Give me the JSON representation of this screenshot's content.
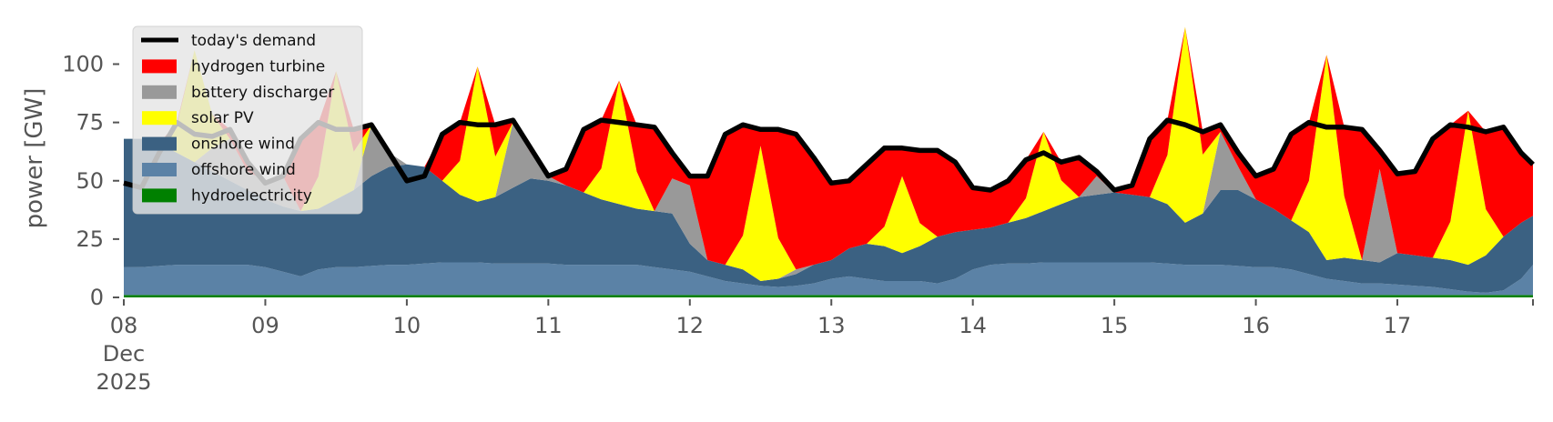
{
  "chart_data": {
    "type": "area",
    "stacked": true,
    "title": "",
    "xlabel": "",
    "ylabel": "power [GW]",
    "ylim": [
      0,
      119
    ],
    "x_start": "2025-12-08 00:00",
    "x_step_hours": 3,
    "xlim_hours": [
      0,
      239
    ],
    "grid": false,
    "legend_position": "top-left",
    "yticks": [
      0,
      25,
      50,
      75,
      100
    ],
    "xticks": [
      {
        "hour": 0,
        "lines": [
          "08",
          "Dec",
          "2025"
        ]
      },
      {
        "hour": 24,
        "lines": [
          "09"
        ]
      },
      {
        "hour": 48,
        "lines": [
          "10"
        ]
      },
      {
        "hour": 72,
        "lines": [
          "11"
        ]
      },
      {
        "hour": 96,
        "lines": [
          "12"
        ]
      },
      {
        "hour": 120,
        "lines": [
          "13"
        ]
      },
      {
        "hour": 144,
        "lines": [
          "14"
        ]
      },
      {
        "hour": 168,
        "lines": [
          "15"
        ]
      },
      {
        "hour": 192,
        "lines": [
          "16"
        ]
      },
      {
        "hour": 216,
        "lines": [
          "17"
        ]
      }
    ],
    "series": [
      {
        "name": "hydroelectricity",
        "color": "#008000",
        "values": [
          1,
          1,
          1,
          1,
          1,
          1,
          1,
          1,
          1,
          1,
          1,
          1,
          1,
          1,
          1,
          1,
          1,
          1,
          1,
          1,
          1,
          1,
          1,
          1,
          1,
          1,
          1,
          1,
          1,
          1,
          1,
          1,
          1,
          1,
          1,
          1,
          1,
          1,
          1,
          1,
          1,
          1,
          1,
          1,
          1,
          1,
          1,
          1,
          1,
          1,
          1,
          1,
          1,
          1,
          1,
          1,
          1,
          1,
          1,
          1,
          1,
          1,
          1,
          1,
          1,
          1,
          1,
          1,
          1,
          1,
          1,
          1,
          1,
          1,
          1,
          1,
          1,
          1,
          1,
          1,
          1
        ]
      },
      {
        "name": "offshore wind",
        "color": "#5b82a6",
        "values": [
          12,
          12,
          12.5,
          13,
          13,
          13,
          13,
          13,
          12,
          10,
          8,
          11,
          12,
          12,
          12.5,
          13,
          13,
          13.5,
          14,
          14,
          14,
          13.5,
          13.5,
          13.5,
          13.5,
          13,
          13,
          13,
          13,
          13,
          12,
          11,
          10,
          8,
          6,
          5,
          4,
          3.5,
          4,
          5,
          7,
          8,
          7,
          6,
          6,
          6,
          5,
          7,
          11,
          13,
          13.5,
          13.5,
          14,
          14,
          14,
          14,
          14,
          14,
          14,
          13.5,
          13,
          13,
          13,
          12.5,
          12,
          12,
          11,
          9,
          7,
          6,
          5,
          5,
          4.5,
          4,
          3.5,
          2.5,
          1.5,
          1,
          2,
          7,
          13
        ]
      },
      {
        "name": "onshore wind",
        "color": "#3b6182",
        "values": [
          55,
          55,
          52.5,
          48,
          44,
          40,
          36,
          32,
          29,
          28,
          28,
          26,
          29,
          33,
          38.5,
          42,
          43,
          41.5,
          35,
          29,
          26,
          28.5,
          32.5,
          36.5,
          35.5,
          34,
          31,
          28,
          26,
          24,
          24,
          24,
          12,
          7,
          7,
          6,
          2,
          3.5,
          5,
          8,
          8,
          12,
          15,
          15,
          12,
          15,
          20,
          20,
          17,
          16,
          17.5,
          19.5,
          22,
          25,
          28,
          29,
          30,
          29,
          28,
          25.5,
          18,
          22,
          32,
          32.5,
          29,
          25,
          21,
          18,
          8,
          10,
          10,
          9,
          13.5,
          13,
          12.5,
          12.5,
          11.5,
          16,
          23,
          24,
          21
        ]
      },
      {
        "name": "battery discharger",
        "color": "#999999",
        "values": [
          0,
          0,
          0,
          0,
          0,
          10,
          18,
          8,
          8,
          13,
          0,
          0,
          0,
          0,
          22,
          6,
          0,
          0,
          0,
          0,
          0,
          0,
          28,
          11,
          2,
          0,
          0,
          0,
          0,
          0,
          0,
          15,
          25,
          0,
          0,
          0,
          0,
          0,
          2,
          0,
          0,
          0,
          0,
          0,
          0,
          0,
          0,
          0,
          0,
          0,
          0,
          0,
          0,
          0,
          0,
          8,
          0,
          0,
          0,
          0,
          0,
          0,
          25,
          10,
          0,
          0,
          0,
          0,
          0,
          0,
          0,
          40,
          0,
          0,
          0,
          0,
          0,
          0,
          0,
          0,
          0
        ]
      },
      {
        "name": "solar PV",
        "color": "#ffff00",
        "values": [
          0,
          0,
          0,
          12,
          48,
          14.4,
          0,
          0,
          0,
          0,
          0,
          13.8,
          55,
          16.5,
          0,
          0,
          0,
          0,
          0,
          14.5,
          58,
          17.4,
          0,
          0,
          0,
          0,
          0,
          13.3,
          53,
          15.9,
          0,
          0,
          0,
          0,
          0,
          14.5,
          58,
          17.4,
          0,
          0,
          0,
          0,
          0,
          8.3,
          33,
          9.9,
          0,
          0,
          0,
          0,
          0,
          8.5,
          34,
          10.2,
          0,
          0,
          0,
          0,
          0,
          21,
          84,
          25.2,
          0,
          0,
          0,
          0,
          0,
          22,
          88,
          26.4,
          0,
          0,
          0,
          0,
          0,
          16.5,
          66,
          19.8,
          0,
          0,
          0
        ]
      },
      {
        "name": "hydrogen turbine",
        "color": "#ff0000",
        "values": [
          0,
          0,
          0,
          1,
          0,
          0,
          4,
          4,
          0,
          0,
          31,
          23,
          0,
          9.5,
          0,
          0,
          0,
          0,
          20,
          16.5,
          0,
          13.6,
          1,
          2,
          0,
          7,
          27,
          20.8,
          0,
          20.1,
          36,
          11,
          4,
          36,
          56,
          47.5,
          7,
          46.6,
          58,
          46,
          33,
          29,
          34,
          33.8,
          12,
          31.1,
          37,
          30,
          18,
          16,
          18,
          16.5,
          0,
          7.8,
          17,
          2,
          1,
          4,
          25,
          15,
          0,
          9.8,
          3,
          6,
          10,
          17,
          37,
          25,
          0,
          29.6,
          56,
          8,
          34,
          36,
          51,
          41.5,
          0,
          33.2,
          47,
          30,
          22
        ]
      }
    ],
    "line": {
      "name": "today's demand",
      "color": "#000000",
      "values": [
        49,
        47,
        62,
        75,
        70,
        69,
        72,
        58,
        49,
        52,
        68,
        75,
        72,
        72,
        74,
        62,
        50,
        52,
        70,
        75,
        74,
        74,
        76,
        64,
        52,
        55,
        72,
        76,
        75,
        74,
        73,
        62,
        52,
        52,
        70,
        74,
        72,
        72,
        70,
        60,
        49,
        50,
        57,
        64,
        64,
        63,
        63,
        58,
        47,
        46,
        50,
        59,
        62,
        58,
        60,
        54,
        46,
        48,
        68,
        76,
        74,
        71,
        74,
        62,
        52,
        55,
        70,
        75,
        73,
        73,
        72,
        63,
        53,
        54,
        68,
        74,
        73,
        71,
        73,
        62,
        57
      ]
    },
    "legend": [
      "today's demand",
      "hydrogen turbine",
      "battery discharger",
      "solar PV",
      "onshore wind",
      "offshore wind",
      "hydroelectricity"
    ]
  }
}
